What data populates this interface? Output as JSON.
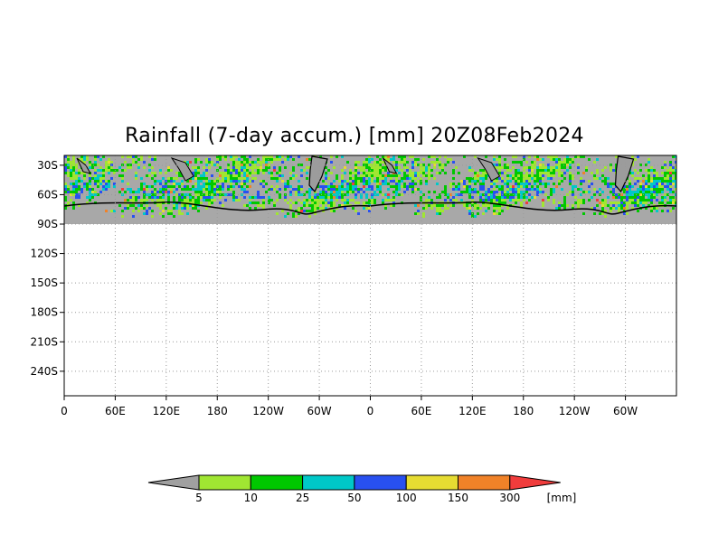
{
  "title": "Rainfall (7-day accum.) [mm] 20Z08Feb2024",
  "lat_axis": {
    "labels": [
      "30S",
      "60S",
      "90S",
      "120S",
      "150S",
      "180S",
      "210S",
      "240S"
    ],
    "values": [
      -30,
      -60,
      -90,
      -120,
      -150,
      -180,
      -210,
      -240
    ],
    "range": [
      -20,
      -265
    ]
  },
  "lon_axis": {
    "labels": [
      "0",
      "60E",
      "120E",
      "180",
      "120W",
      "60W",
      "0",
      "60E",
      "120E",
      "180",
      "120W",
      "60W"
    ],
    "values": [
      0,
      60,
      120,
      180,
      240,
      300,
      360,
      420,
      480,
      540,
      600,
      660
    ],
    "range": [
      0,
      720
    ]
  },
  "data_band": {
    "lat_top": -20,
    "lat_bottom": -90,
    "land_color": "#a8a8a8"
  },
  "colorbar": {
    "unit": "[mm]",
    "tick_labels": [
      "5",
      "10",
      "25",
      "50",
      "100",
      "150",
      "300"
    ],
    "under_color": "#a0a0a0",
    "bins": [
      "#a0e632",
      "#00c800",
      "#00c8c8",
      "#2850f0",
      "#e6dc32",
      "#f08228",
      "#f03c3c"
    ]
  }
}
